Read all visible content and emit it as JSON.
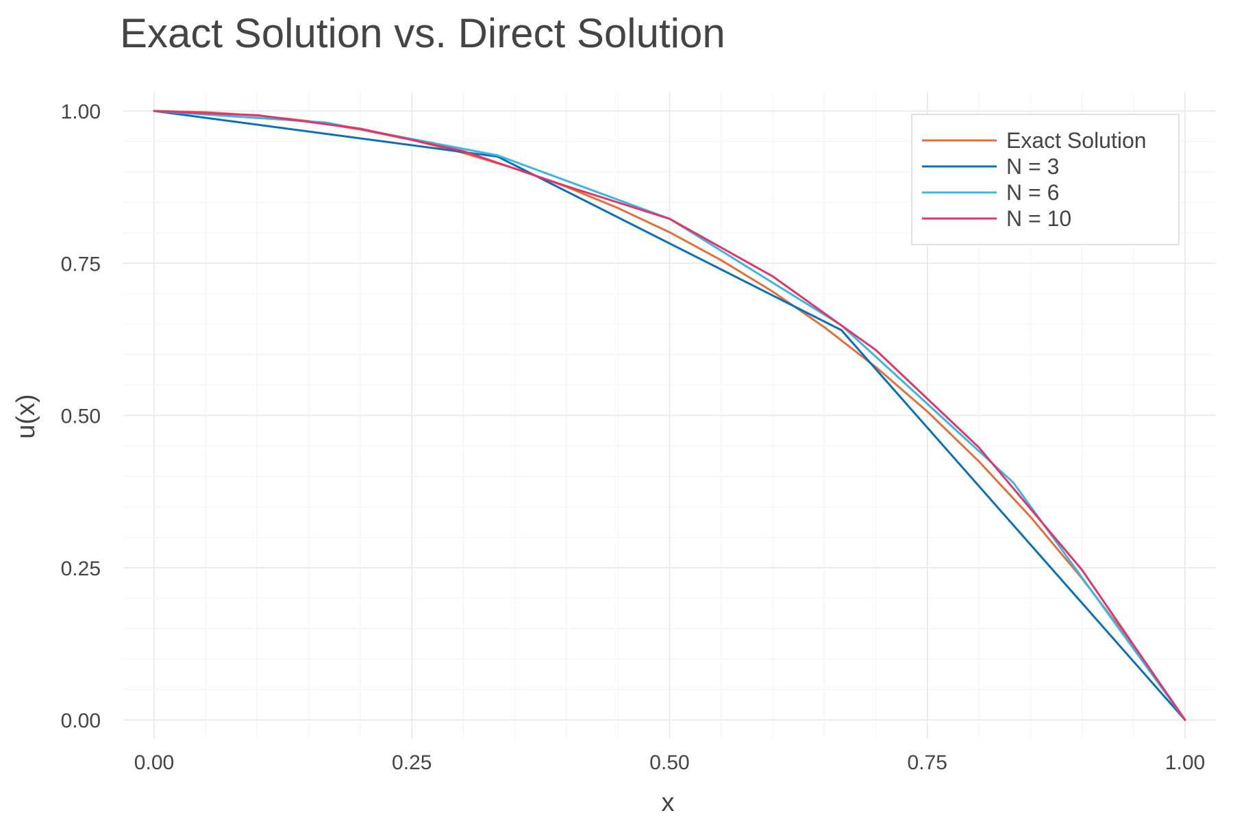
{
  "chart_data": {
    "type": "line",
    "title": "Exact Solution vs. Direct Solution",
    "xlabel": "x",
    "ylabel": "u(x)",
    "xlim": [
      0,
      1
    ],
    "ylim": [
      0,
      1
    ],
    "x_ticks": [
      "0.00",
      "0.25",
      "0.50",
      "0.75",
      "1.00"
    ],
    "y_ticks": [
      "0.00",
      "0.25",
      "0.50",
      "0.75",
      "1.00"
    ],
    "grid": true,
    "legend_position": "top-right",
    "series": [
      {
        "name": "Exact Solution",
        "color": "#e26f39",
        "x": [
          0,
          0.05,
          0.1,
          0.15,
          0.2,
          0.25,
          0.3,
          0.35,
          0.4,
          0.45,
          0.5,
          0.55,
          0.6,
          0.65,
          0.7,
          0.75,
          0.8,
          0.85,
          0.9,
          0.95,
          1.0
        ],
        "y": [
          1.0,
          0.998,
          0.9925,
          0.9835,
          0.9695,
          0.9525,
          0.931,
          0.9055,
          0.8755,
          0.8405,
          0.8008,
          0.755,
          0.7035,
          0.645,
          0.5795,
          0.5065,
          0.4245,
          0.3335,
          0.2325,
          0.1215,
          0.0
        ]
      },
      {
        "name": "N = 3",
        "color": "#0b6fb8",
        "x": [
          0,
          0.3333,
          0.6667,
          1.0
        ],
        "y": [
          1.0,
          0.925,
          0.64,
          0.0
        ]
      },
      {
        "name": "N = 6",
        "color": "#3bb4e6",
        "x": [
          0,
          0.1667,
          0.3333,
          0.5,
          0.6667,
          0.8333,
          1.0
        ],
        "y": [
          1.0,
          0.981,
          0.927,
          0.823,
          0.648,
          0.39,
          0.0
        ]
      },
      {
        "name": "N = 10",
        "color": "#e2346b",
        "x": [
          0,
          0.1,
          0.2,
          0.3,
          0.4,
          0.5,
          0.6,
          0.7,
          0.8,
          0.9,
          1.0
        ],
        "y": [
          1.0,
          0.993,
          0.971,
          0.934,
          0.8765,
          0.823,
          0.7285,
          0.6075,
          0.4475,
          0.2465,
          0.0
        ]
      }
    ]
  }
}
